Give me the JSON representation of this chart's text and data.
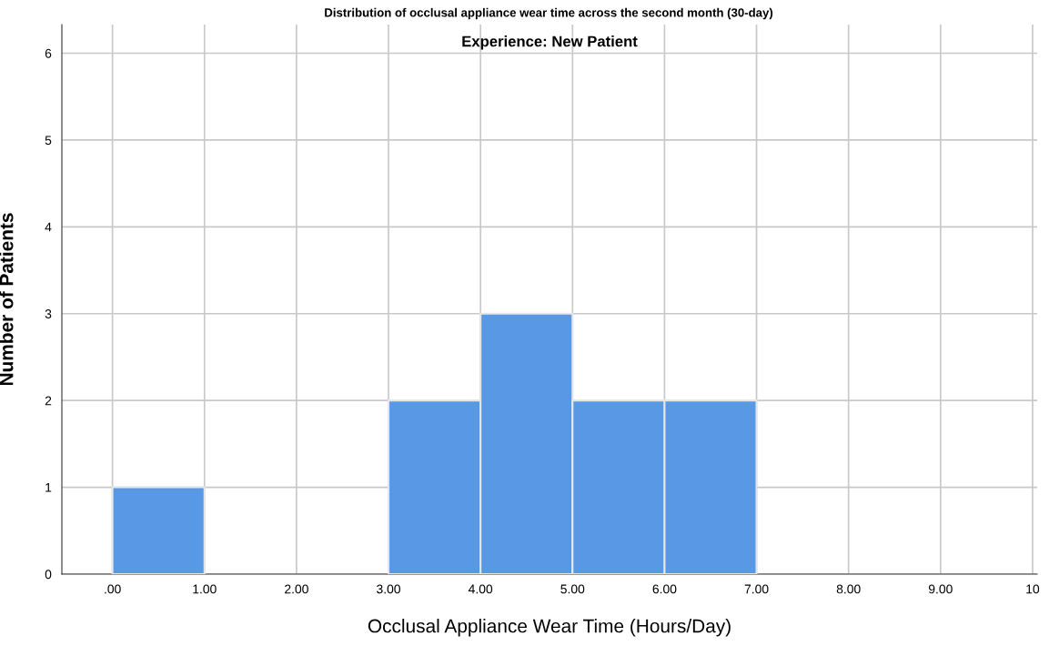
{
  "chart_data": {
    "type": "histogram",
    "title": "Distribution of occlusal appliance wear time across the second month (30-day)",
    "annotations": [
      "Experience: New Patient"
    ],
    "xlabel": "Occlusal Appliance Wear Time (Hours/Day)",
    "ylabel": "Number of Patients",
    "bins": [
      0,
      1,
      2,
      3,
      4,
      5,
      6,
      7
    ],
    "values": [
      1,
      0,
      0,
      2,
      3,
      2,
      2
    ],
    "color": "#5898e4",
    "xlim": [
      -0.55,
      10.05
    ],
    "ylim": [
      0,
      6.33
    ],
    "xticks": [
      {
        "value": 0,
        "label": ".00"
      },
      {
        "value": 1,
        "label": "1.00"
      },
      {
        "value": 2,
        "label": "2.00"
      },
      {
        "value": 3,
        "label": "3.00"
      },
      {
        "value": 4,
        "label": "4.00"
      },
      {
        "value": 5,
        "label": "5.00"
      },
      {
        "value": 6,
        "label": "6.00"
      },
      {
        "value": 7,
        "label": "7.00"
      },
      {
        "value": 8,
        "label": "8.00"
      },
      {
        "value": 9,
        "label": "9.00"
      },
      {
        "value": 10,
        "label": "10"
      }
    ],
    "yticks": [
      0,
      1,
      2,
      3,
      4,
      5,
      6
    ],
    "grid": true
  }
}
